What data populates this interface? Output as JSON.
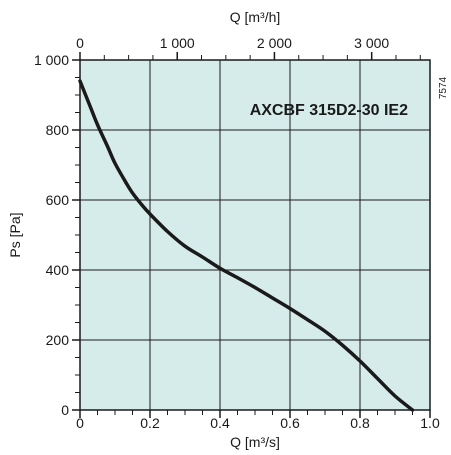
{
  "chart_data": {
    "type": "line",
    "title": "",
    "model_label": "AXCBF 315D2-30 IE2",
    "figure_code": "7574",
    "xlabel": "Q [m³/s]",
    "x2label": "Q [m³/h]",
    "ylabel": "Ps [Pa]",
    "xlim": [
      0,
      1.0
    ],
    "x2lim": [
      0,
      3600
    ],
    "ylim": [
      0,
      1000
    ],
    "grid": true,
    "plot_background": "#d6ecea",
    "line_color": "#1a1a1a",
    "x_ticks": [
      {
        "value": 0,
        "label": "0"
      },
      {
        "value": 0.2,
        "label": "0.2"
      },
      {
        "value": 0.4,
        "label": "0.4"
      },
      {
        "value": 0.6,
        "label": "0.6"
      },
      {
        "value": 0.8,
        "label": "0.8"
      },
      {
        "value": 1.0,
        "label": "1.0"
      }
    ],
    "x2_ticks": [
      {
        "value": 0,
        "label": "0"
      },
      {
        "value": 1000,
        "label": "1 000"
      },
      {
        "value": 2000,
        "label": "2 000"
      },
      {
        "value": 3000,
        "label": "3 000"
      }
    ],
    "y_ticks": [
      {
        "value": 0,
        "label": "0"
      },
      {
        "value": 200,
        "label": "200"
      },
      {
        "value": 400,
        "label": "400"
      },
      {
        "value": 600,
        "label": "600"
      },
      {
        "value": 800,
        "label": "800"
      },
      {
        "value": 1000,
        "label": "1 000"
      }
    ],
    "series": [
      {
        "x": [
          0.0,
          0.03,
          0.05,
          0.08,
          0.1,
          0.13,
          0.15,
          0.18,
          0.2,
          0.25,
          0.3,
          0.35,
          0.4,
          0.45,
          0.5,
          0.55,
          0.6,
          0.65,
          0.7,
          0.75,
          0.8,
          0.85,
          0.9,
          0.95
        ],
        "y": [
          940,
          865,
          815,
          750,
          705,
          652,
          620,
          582,
          560,
          510,
          468,
          437,
          405,
          378,
          350,
          320,
          290,
          258,
          225,
          185,
          140,
          90,
          40,
          0
        ]
      }
    ]
  }
}
